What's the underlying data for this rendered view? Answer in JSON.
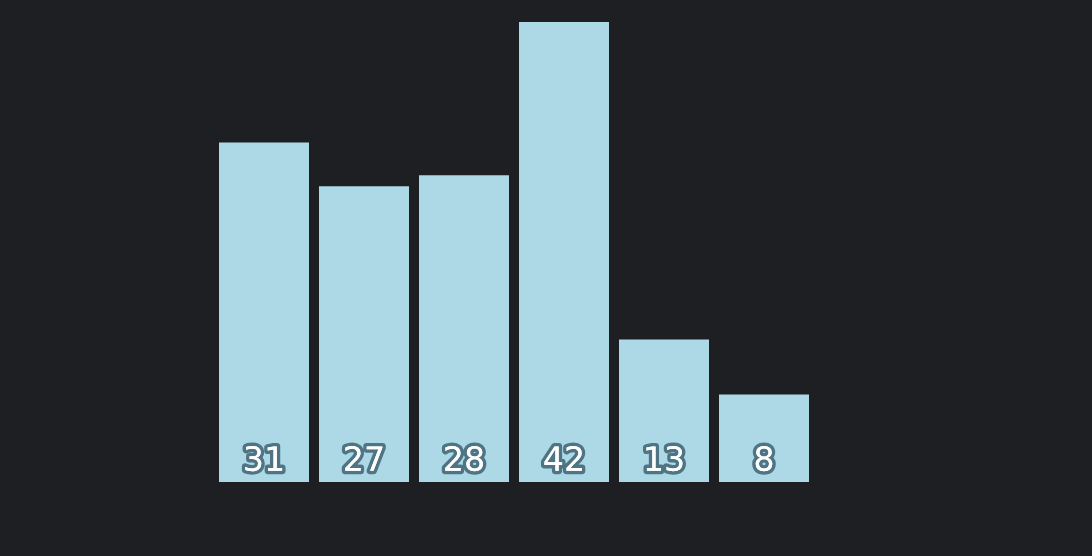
{
  "chart_data": {
    "type": "bar",
    "categories": [
      null,
      null,
      null,
      null,
      null,
      null
    ],
    "values": [
      31,
      27,
      28,
      42,
      13,
      8
    ],
    "color": "#add8e6",
    "data_labels": true
  }
}
